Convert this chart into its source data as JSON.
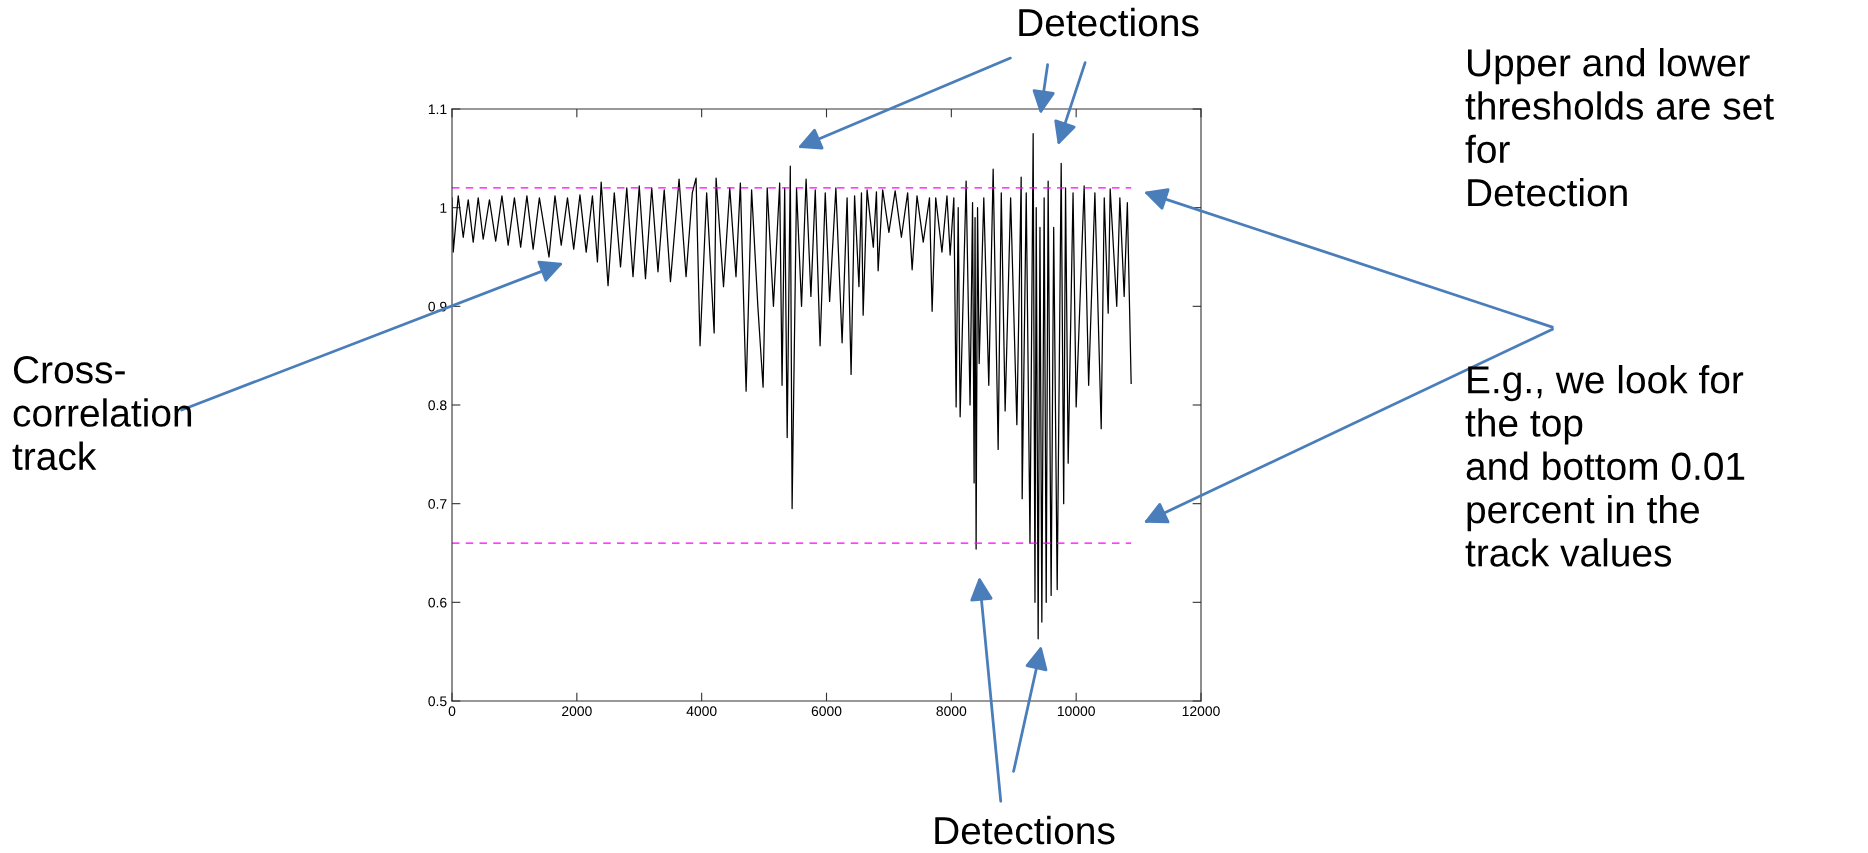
{
  "chart_data": {
    "type": "line",
    "x": [
      0,
      20,
      100,
      180,
      260,
      340,
      420,
      500,
      600,
      700,
      800,
      900,
      1000,
      1100,
      1200,
      1300,
      1400,
      1554,
      1650,
      1750,
      1850,
      1950,
      2050,
      2150,
      2250,
      2330,
      2390,
      2500,
      2600,
      2700,
      2800,
      2900,
      3000,
      3100,
      3200,
      3300,
      3400,
      3500,
      3638,
      3750,
      3850,
      3910,
      3974,
      4080,
      4200,
      4231,
      4350,
      4450,
      4550,
      4620,
      4712,
      4800,
      4900,
      4984,
      5050,
      5150,
      5250,
      5288,
      5330,
      5370,
      5420,
      5449,
      5520,
      5600,
      5673,
      5750,
      5820,
      5897,
      5980,
      6050,
      6150,
      6250,
      6330,
      6394,
      6450,
      6520,
      6560,
      6587,
      6650,
      6750,
      6800,
      6827,
      6900,
      7000,
      7100,
      7200,
      7300,
      7372,
      7450,
      7550,
      7650,
      7692,
      7750,
      7850,
      7930,
      7981,
      8040,
      8077,
      8110,
      8141,
      8237,
      8300,
      8340,
      8365,
      8380,
      8397,
      8420,
      8446,
      8520,
      8600,
      8670,
      8750,
      8800,
      8862,
      8950,
      9050,
      9119,
      9135,
      9200,
      9260,
      9311,
      9340,
      9360,
      9391,
      9420,
      9450,
      9487,
      9520,
      9551,
      9599,
      9640,
      9696,
      9760,
      9800,
      9830,
      9872,
      9950,
      10000,
      10128,
      10200,
      10300,
      10401,
      10450,
      10513,
      10545,
      10650,
      10700,
      10769,
      10820,
      10881
    ],
    "series": [
      {
        "color": "#000000",
        "values": [
          1.01,
          0.955,
          1.012,
          0.97,
          1.008,
          0.965,
          1.01,
          0.968,
          1.008,
          0.966,
          1.012,
          0.962,
          1.01,
          0.96,
          1.012,
          0.958,
          1.01,
          0.95,
          1.012,
          0.962,
          1.01,
          0.958,
          1.013,
          0.955,
          1.012,
          0.945,
          1.026,
          0.921,
          1.015,
          0.94,
          1.02,
          0.93,
          1.022,
          0.928,
          1.02,
          0.935,
          1.018,
          0.925,
          1.029,
          0.93,
          1.015,
          1.03,
          0.86,
          1.015,
          0.873,
          1.03,
          0.92,
          1.02,
          0.93,
          1.025,
          0.814,
          1.018,
          0.9,
          0.818,
          1.02,
          0.9,
          1.025,
          0.82,
          1.02,
          0.767,
          1.042,
          0.695,
          1.02,
          0.9,
          1.029,
          0.91,
          1.018,
          0.86,
          1.015,
          0.905,
          1.02,
          0.863,
          1.01,
          0.831,
          1.012,
          0.92,
          1.015,
          0.891,
          1.018,
          0.96,
          1.016,
          0.936,
          1.018,
          0.975,
          1.017,
          0.97,
          1.015,
          0.937,
          1.012,
          0.965,
          1.01,
          0.895,
          1.01,
          0.955,
          1.012,
          0.952,
          1.01,
          0.798,
          1.0,
          0.788,
          1.027,
          0.8,
          1.005,
          0.721,
          0.99,
          0.654,
          1.0,
          0.842,
          1.01,
          0.82,
          1.039,
          0.755,
          1.015,
          0.794,
          1.01,
          0.78,
          1.031,
          0.705,
          1.015,
          0.66,
          1.075,
          0.6,
          1.0,
          0.563,
          0.98,
          0.58,
          1.01,
          0.6,
          1.027,
          0.607,
          0.98,
          0.613,
          1.045,
          0.7,
          1.02,
          0.741,
          1.015,
          0.798,
          1.022,
          0.82,
          1.015,
          0.776,
          1.01,
          0.893,
          1.019,
          0.9,
          1.01,
          0.91,
          1.005,
          0.822
        ]
      }
    ],
    "xlim": [
      0,
      12000
    ],
    "xticks": [
      0,
      2000,
      4000,
      6000,
      8000,
      10000,
      12000
    ],
    "ylim": [
      0.5,
      1.1
    ],
    "yticks": [
      0.5,
      0.6,
      0.7,
      0.8,
      0.9,
      1,
      1.1
    ],
    "ref_lines": [
      {
        "axis": "y",
        "value": 1.02,
        "color": "#ff00ff",
        "line_style": "dashed"
      },
      {
        "axis": "y",
        "value": 0.66,
        "color": "#ff00ff",
        "line_style": "dashed"
      }
    ],
    "grid": false,
    "marker": "none",
    "line_style": "solid",
    "annotations": [
      "Detections",
      "Upper and lower\nthresholds are set\nfor\nDetection",
      "E.g., we look for\nthe top\nand bottom 0.01\npercent in the\ntrack values",
      "Cross-\ncorrelation\ntrack",
      "Detections"
    ]
  }
}
